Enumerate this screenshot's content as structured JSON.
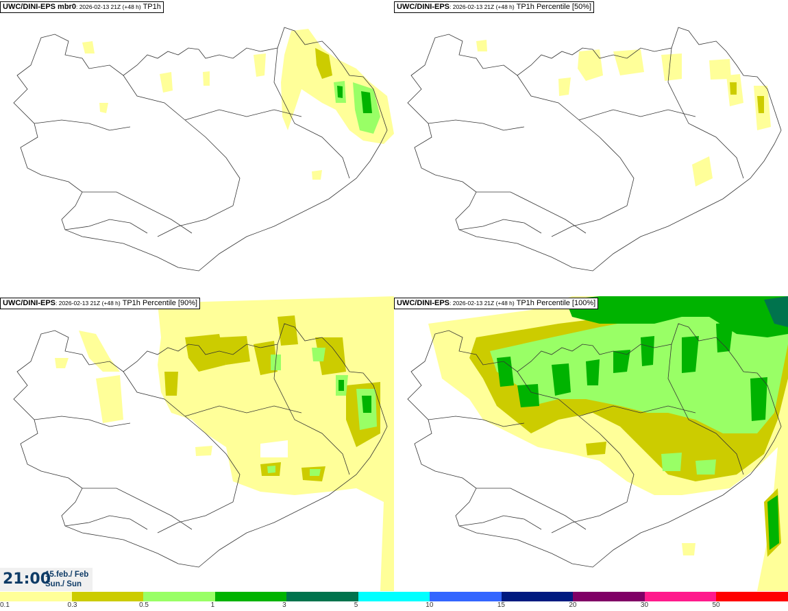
{
  "panels": [
    {
      "model": "UWC/DINI-EPS mbr0",
      "meta": ": 2026-02-13 21Z (+48 h)",
      "field": "TP1h"
    },
    {
      "model": "UWC/DINI-EPS",
      "meta": ": 2026-02-13 21Z (+48 h)",
      "field": "TP1h Percentile [50%]"
    },
    {
      "model": "UWC/DINI-EPS",
      "meta": ": 2026-02-13 21Z (+48 h)",
      "field": "TP1h Percentile [90%]"
    },
    {
      "model": "UWC/DINI-EPS",
      "meta": ": 2026-02-13 21Z (+48 h)",
      "field": "TP1h Percentile [100%]"
    }
  ],
  "valid_time": {
    "time": "21:00",
    "date_line1": "15.feb./ Feb",
    "date_line2": "Sun./ Sun"
  },
  "legend": {
    "labels": [
      "0.1",
      "0.3",
      "0.5",
      "1",
      "3",
      "5",
      "10",
      "15",
      "20",
      "30",
      "50"
    ],
    "colors": [
      "#ffff99",
      "#cccc00",
      "#99ff66",
      "#00b300",
      "#00734d",
      "#00ffff",
      "#3366ff",
      "#001a80",
      "#800066",
      "#ff1a8c",
      "#ff0000"
    ]
  },
  "colors": {
    "light_yellow": "#ffff99",
    "olive": "#cccc00",
    "light_green": "#99ff66",
    "green": "#00b300",
    "dark_green": "#00734d",
    "coast": "#333333"
  }
}
